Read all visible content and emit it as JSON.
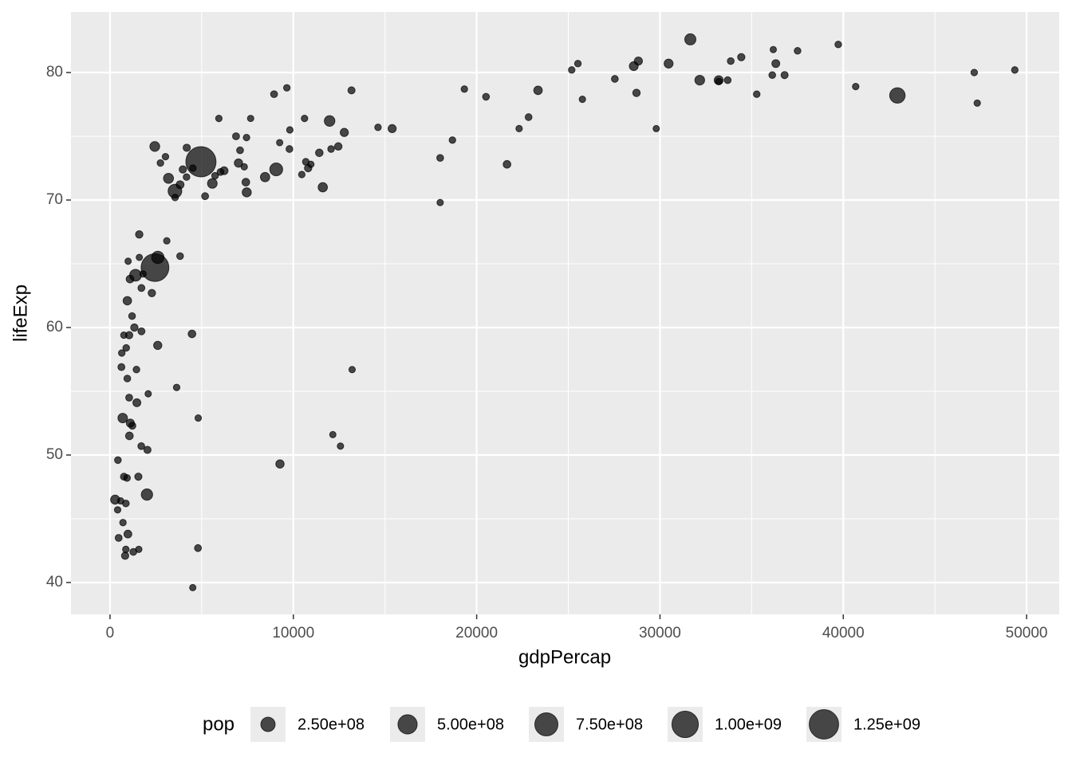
{
  "chart_data": {
    "type": "scatter",
    "xlabel": "gdpPercap",
    "ylabel": "lifeExp",
    "xlim": [
      -2130,
      51780
    ],
    "ylim": [
      37.5,
      84.75
    ],
    "xticks": [
      0,
      10000,
      20000,
      30000,
      40000,
      50000
    ],
    "yticks": [
      40,
      50,
      60,
      70,
      80
    ],
    "xminorticks": [
      5000,
      15000,
      25000,
      35000,
      45000
    ],
    "yminorticks": [
      45,
      55,
      65,
      75
    ],
    "grid": true,
    "color": "#000000",
    "opacity": 0.7,
    "legend_position": "bottom",
    "size_legend": {
      "title": "pop",
      "values": [
        {
          "value": 250000000,
          "label": "2.50e+08"
        },
        {
          "value": 500000000,
          "label": "5.00e+08"
        },
        {
          "value": 750000000,
          "label": "7.50e+08"
        },
        {
          "value": 1000000000,
          "label": "1.00e+09"
        },
        {
          "value": 1250000000,
          "label": "1.25e+09"
        }
      ]
    },
    "x": [
      975,
      5937,
      6223,
      4797,
      12779,
      34435,
      36126,
      29796,
      1391,
      33693,
      1441,
      3822,
      7446,
      12570,
      9066,
      10681,
      1217,
      430,
      1714,
      2042,
      36319,
      706,
      1704,
      13172,
      4959,
      7007,
      986,
      278,
      3633,
      9645,
      1545,
      14619,
      8948,
      22833,
      35278,
      2082,
      6025,
      6873,
      5581,
      5728,
      12154,
      641,
      691,
      33207,
      30470,
      13206,
      753,
      32170,
      1328,
      27538,
      5186,
      943,
      579,
      1202,
      3548,
      39725,
      18009,
      36181,
      2452,
      3541,
      11606,
      4471,
      40676,
      25523,
      28570,
      7321,
      31656,
      4519,
      1463,
      1593,
      23348,
      47307,
      10461,
      1569,
      415,
      12058,
      1045,
      759,
      12452,
      1043,
      1803,
      10957,
      11978,
      3096,
      9254,
      3820,
      824,
      944,
      4811,
      1091,
      36798,
      25185,
      2749,
      620,
      2014,
      49357,
      22316,
      2606,
      9809,
      4173,
      7409,
      3190,
      15390,
      20510,
      19329,
      7670,
      10808,
      863,
      1598,
      21655,
      1712,
      9787,
      863,
      47143,
      18678,
      25768,
      926,
      9270,
      28821,
      3970,
      2602,
      4513,
      33860,
      37506,
      4185,
      28718,
      1107,
      7458,
      883,
      18009,
      7093,
      8458,
      1056,
      33203,
      42952,
      10611,
      11416,
      2442,
      3025,
      2281,
      1271,
      470
    ],
    "y": [
      43.8,
      76.4,
      72.3,
      42.7,
      75.3,
      81.2,
      79.8,
      75.6,
      64.1,
      79.4,
      56.7,
      65.6,
      74.9,
      50.7,
      72.4,
      73.0,
      52.3,
      49.6,
      59.7,
      50.4,
      80.7,
      44.7,
      50.7,
      78.6,
      73.0,
      72.9,
      65.2,
      46.5,
      55.3,
      78.8,
      48.3,
      75.7,
      78.3,
      76.5,
      78.3,
      54.8,
      72.2,
      75.0,
      71.3,
      71.9,
      51.6,
      58.0,
      52.9,
      79.3,
      80.7,
      56.7,
      59.4,
      79.4,
      60.0,
      79.5,
      70.3,
      56.0,
      46.4,
      60.9,
      70.2,
      82.2,
      73.3,
      81.8,
      64.7,
      70.7,
      71.0,
      59.5,
      78.9,
      80.7,
      80.5,
      72.6,
      82.6,
      72.5,
      54.1,
      67.3,
      78.6,
      77.6,
      72.0,
      42.6,
      45.7,
      74.0,
      59.4,
      48.3,
      74.2,
      54.5,
      64.2,
      72.8,
      76.2,
      66.8,
      74.5,
      71.2,
      42.1,
      62.1,
      52.9,
      63.8,
      79.8,
      80.2,
      72.9,
      56.9,
      46.9,
      80.2,
      75.6,
      65.5,
      75.5,
      71.8,
      71.4,
      71.7,
      75.6,
      78.1,
      78.7,
      76.4,
      72.5,
      46.2,
      65.5,
      72.8,
      63.1,
      74.0,
      42.6,
      80.0,
      74.7,
      77.9,
      48.2,
      49.3,
      80.9,
      72.4,
      58.6,
      39.6,
      80.9,
      81.7,
      74.1,
      78.4,
      52.5,
      70.6,
      58.4,
      69.8,
      73.9,
      71.8,
      51.5,
      79.4,
      78.2,
      76.4,
      73.7,
      74.2,
      73.4,
      62.7,
      42.4,
      43.5
    ],
    "size": [
      31890000,
      3601000,
      33333000,
      12420000,
      40302000,
      20434000,
      8200000,
      709000,
      150448000,
      10392000,
      8078000,
      9119000,
      4552000,
      1639000,
      190011000,
      7323000,
      14326000,
      8391000,
      14132000,
      17696000,
      33390000,
      4369000,
      10239000,
      16285000,
      1318683000,
      44228000,
      711000,
      64607000,
      3801000,
      4134000,
      18013000,
      4493000,
      11417000,
      10229000,
      5468000,
      496000,
      9320000,
      13756000,
      80265000,
      6940000,
      551000,
      4907000,
      76512000,
      5238000,
      61084000,
      1455000,
      1688000,
      82401000,
      22873000,
      10706000,
      12573000,
      9948000,
      1472000,
      8503000,
      7484000,
      6980000,
      9956000,
      302000,
      1110396000,
      223547000,
      69454000,
      27500000,
      4109000,
      6427000,
      58148000,
      2780000,
      127468000,
      6053000,
      35610000,
      23302000,
      49045000,
      2506000,
      3921000,
      2013000,
      3194000,
      6037000,
      19168000,
      13327000,
      24821000,
      12032000,
      3270000,
      1251000,
      108701000,
      2874000,
      685000,
      33757000,
      19952000,
      47762000,
      2055000,
      28902000,
      16571000,
      4116000,
      5675000,
      12895000,
      135031000,
      4628000,
      3205000,
      169271000,
      3242000,
      6667000,
      28675000,
      91077000,
      38518000,
      10643000,
      3942000,
      798000,
      22276000,
      8861000,
      200000,
      27601000,
      12267000,
      10150000,
      6145000,
      4553000,
      5448000,
      2009000,
      9119000,
      43998000,
      40448000,
      20378000,
      42293000,
      1133000,
      9031000,
      7555000,
      19315000,
      23174000,
      38140000,
      65068000,
      5702000,
      1057000,
      10276000,
      71159000,
      29170000,
      60776000,
      301140000,
      3447000,
      26085000,
      85262000,
      4018000,
      22212000,
      11746000,
      12311000
    ]
  }
}
